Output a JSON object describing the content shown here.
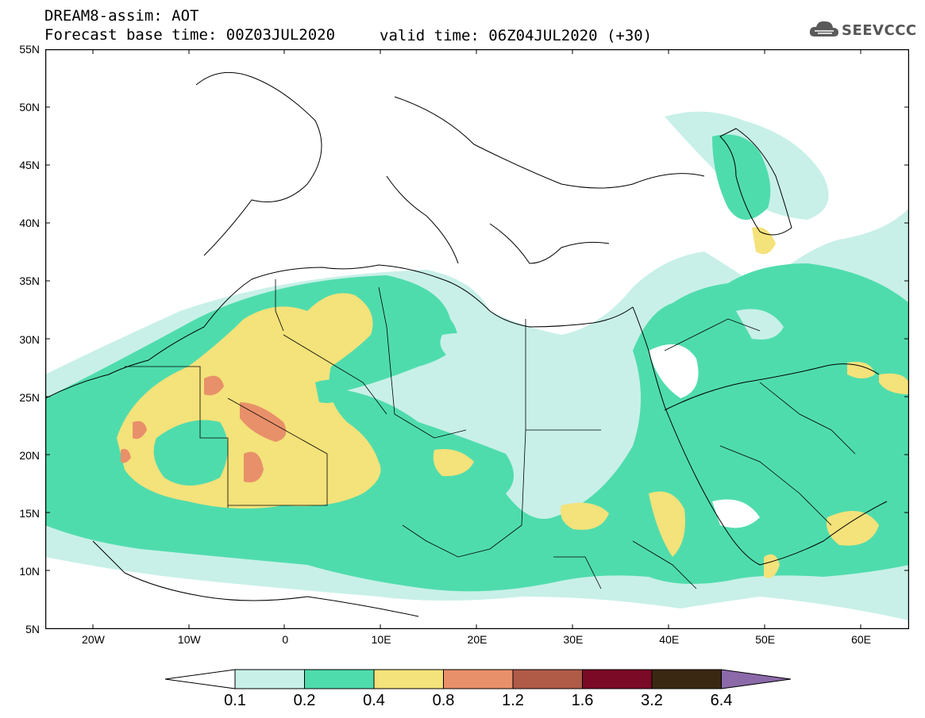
{
  "header": {
    "line1": "DREAM8-assim: AOT",
    "line2": "Forecast base time: 00Z03JUL2020",
    "valid": "valid time: 06Z04JUL2020 (+30)"
  },
  "logo": {
    "text": "SEEVCCC",
    "icon": "cloud-icon"
  },
  "map": {
    "lat_labels": [
      "55N",
      "50N",
      "45N",
      "40N",
      "35N",
      "30N",
      "25N",
      "20N",
      "15N",
      "10N",
      "5N"
    ],
    "lon_labels": [
      "20W",
      "10W",
      "0",
      "10E",
      "20E",
      "30E",
      "40E",
      "50E",
      "60E"
    ]
  },
  "legend": {
    "labels": [
      "0.1",
      "0.2",
      "0.4",
      "0.8",
      "1.2",
      "1.6",
      "3.2",
      "6.4"
    ],
    "colors": [
      "#c8f0e8",
      "#4fdcac",
      "#f4e27a",
      "#e8906a",
      "#b05a48",
      "#7a0a26",
      "#3a2812",
      "#8c6aaa"
    ],
    "under_color": "#ffffff"
  }
}
